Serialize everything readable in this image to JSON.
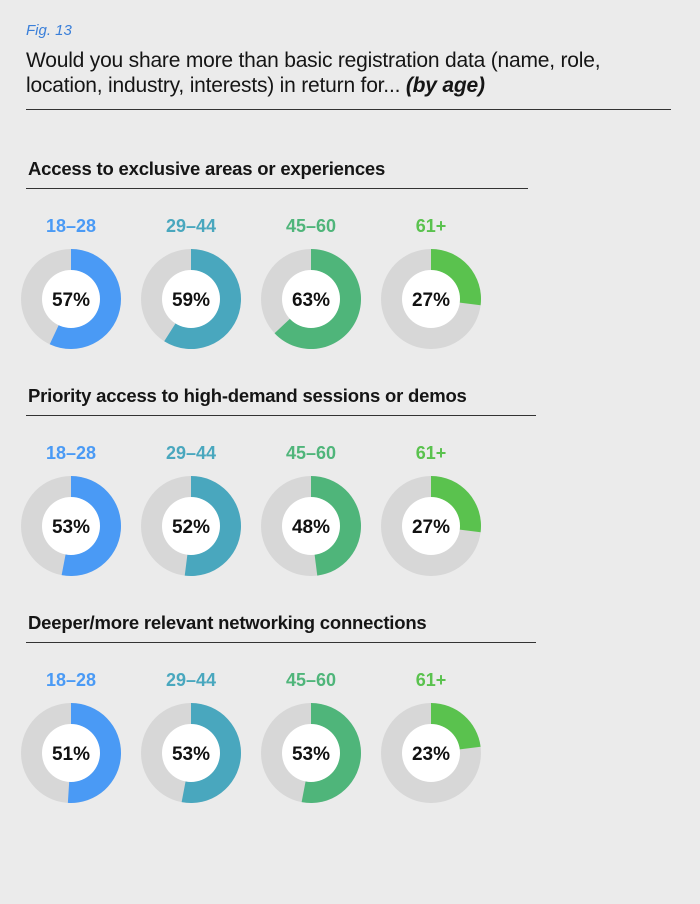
{
  "header": {
    "fig_label": "Fig. 13",
    "title": "Would you share more than basic registration data (name, role, location, industry, interests) in return for...",
    "title_suffix": "(by age)"
  },
  "colors": {
    "track": "#d7d7d7",
    "inner": "#ffffff",
    "age_colors": [
      "#4a9af5",
      "#49a7be",
      "#4fb57a",
      "#5ac24e"
    ]
  },
  "chart_data": [
    {
      "type": "donut",
      "title": "Access to exclusive areas or experiences",
      "categories": [
        "18–28",
        "29–44",
        "45–60",
        "61+"
      ],
      "values": [
        57,
        59,
        63,
        27
      ],
      "labels": [
        "57%",
        "59%",
        "63%",
        "27%"
      ]
    },
    {
      "type": "donut",
      "title": "Priority access to high-demand sessions or demos",
      "categories": [
        "18–28",
        "29–44",
        "45–60",
        "61+"
      ],
      "values": [
        53,
        52,
        48,
        27
      ],
      "labels": [
        "53%",
        "52%",
        "48%",
        "27%"
      ]
    },
    {
      "type": "donut",
      "title": "Deeper/more relevant networking connections",
      "categories": [
        "18–28",
        "29–44",
        "45–60",
        "61+"
      ],
      "values": [
        51,
        53,
        53,
        23
      ],
      "labels": [
        "51%",
        "53%",
        "53%",
        "23%"
      ]
    }
  ]
}
